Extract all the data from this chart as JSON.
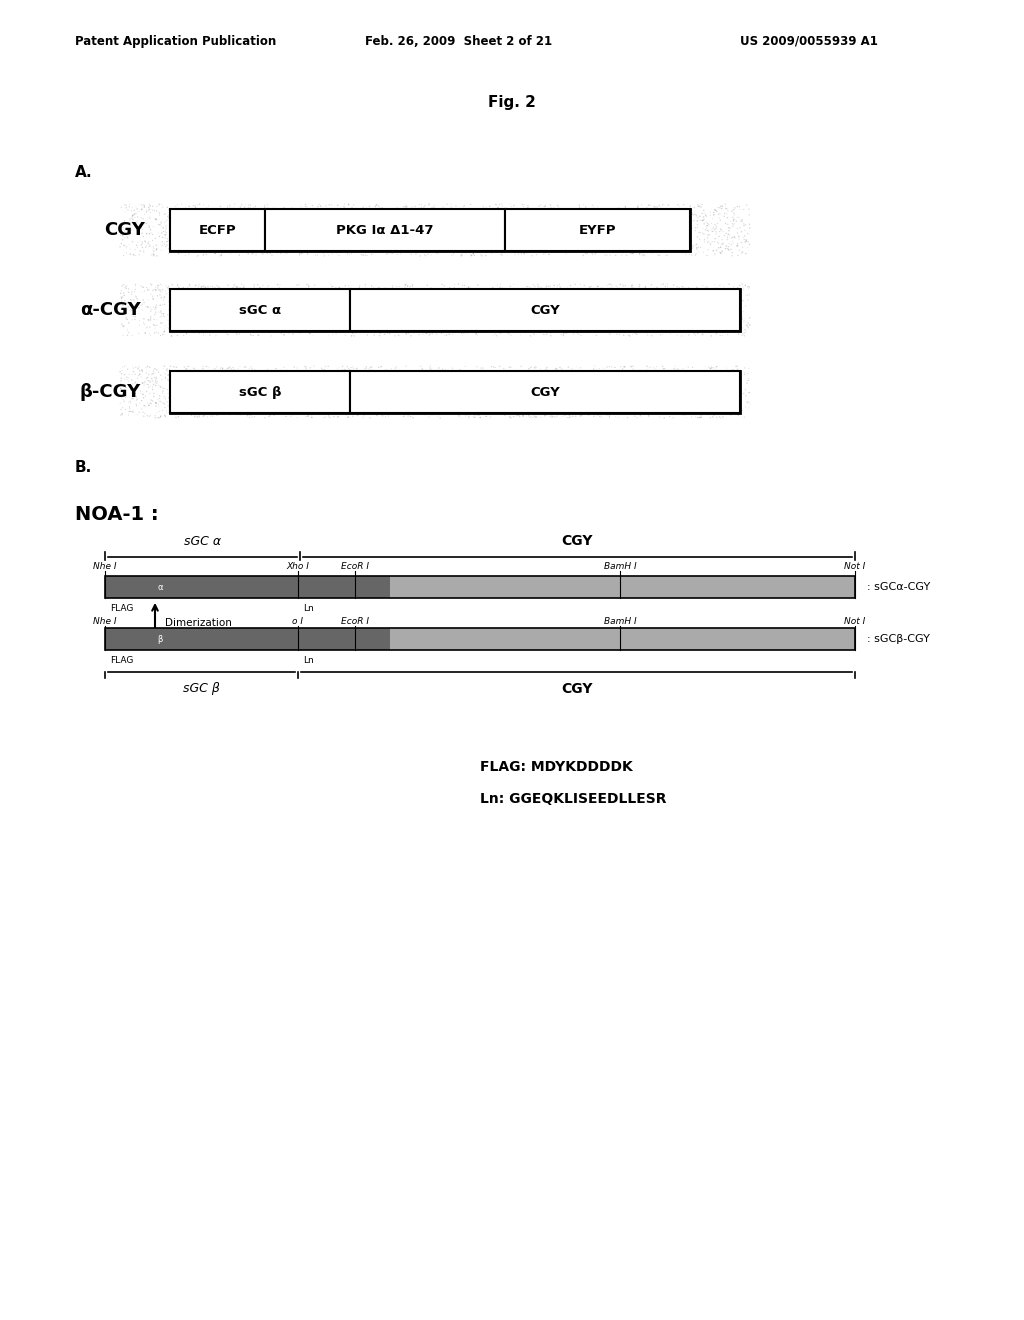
{
  "title_header_left": "Patent Application Publication",
  "title_header_mid": "Feb. 26, 2009  Sheet 2 of 21",
  "title_header_right": "US 2009/0055939 A1",
  "fig_title": "Fig. 2",
  "section_A_label": "A.",
  "section_B_label": "B.",
  "noa1_label": "NOA-1 :",
  "row1_label": "CGY",
  "row2_label": "α-CGY",
  "row3_label": "β-CGY",
  "row1_boxes": [
    "ECFP",
    "PKG Iα Δ1-47",
    "EYFP"
  ],
  "row2_boxes": [
    "sGC α",
    "CGY"
  ],
  "row3_boxes": [
    "sGC β",
    "CGY"
  ],
  "sgca_label": "sGC α",
  "cgy_top_label": "CGY",
  "nhe1_top": "Nhe I",
  "xho1_top": "Xho I",
  "ecor1_top": "EcoR I",
  "bamh1_top": "BamH I",
  "not1_top": "Not I",
  "flag_top": "FLAG",
  "ln_top": "Ln",
  "label_sgca_cgy": ": sGCα-CGY",
  "dimerization": "Dimerization",
  "nhe1_bot": "Nhe I",
  "xo1_bot": "o I",
  "ecor1_bot": "EcoR I",
  "bamh1_bot": "BamH I",
  "not1_bot": "Not I",
  "flag_bot": "FLAG",
  "ln_bot": "Ln",
  "label_sgcb_cgy": ": sGCβ-CGY",
  "sgcb_label": "sGC β",
  "cgy_bot_label": "CGY",
  "flag_seq": "FLAG: MDYKDDDDK",
  "ln_seq": "Ln: GGEQKLISEEDLLESR",
  "bg_color": "#ffffff",
  "box_color": "#ffffff",
  "box_edge": "#000000",
  "noise_color": "#cccccc",
  "bar_dark": "#555555",
  "bar_light": "#aaaaaa"
}
